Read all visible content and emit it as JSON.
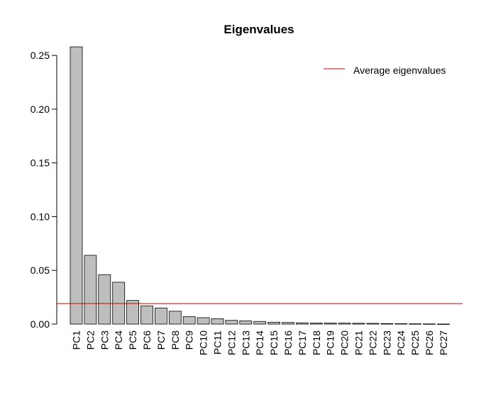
{
  "chart_data": {
    "type": "bar",
    "title": "Eigenvalues",
    "xlabel": "",
    "ylabel": "",
    "ylim": [
      0,
      0.26
    ],
    "yticks": [
      "0.00",
      "0.05",
      "0.10",
      "0.15",
      "0.20",
      "0.25"
    ],
    "grid": false,
    "legend_position": "top-right",
    "categories": [
      "PC1",
      "PC2",
      "PC3",
      "PC4",
      "PC5",
      "PC6",
      "PC7",
      "PC8",
      "PC9",
      "PC10",
      "PC11",
      "PC12",
      "PC13",
      "PC14",
      "PC15",
      "PC16",
      "PC17",
      "PC18",
      "PC19",
      "PC20",
      "PC21",
      "PC22",
      "PC23",
      "PC24",
      "PC25",
      "PC26",
      "PC27"
    ],
    "values": [
      0.258,
      0.064,
      0.046,
      0.039,
      0.022,
      0.017,
      0.015,
      0.012,
      0.007,
      0.006,
      0.005,
      0.0035,
      0.003,
      0.0025,
      0.0018,
      0.0015,
      0.0012,
      0.001,
      0.001,
      0.0009,
      0.0008,
      0.0007,
      0.0005,
      0.0004,
      0.0003,
      0.0002,
      0.0001
    ],
    "reference_line": {
      "label": "Average eigenvalues",
      "value": 0.0191,
      "color": "#cc0000"
    },
    "bar_color": "#bebebe",
    "bar_stroke": "#000000"
  }
}
